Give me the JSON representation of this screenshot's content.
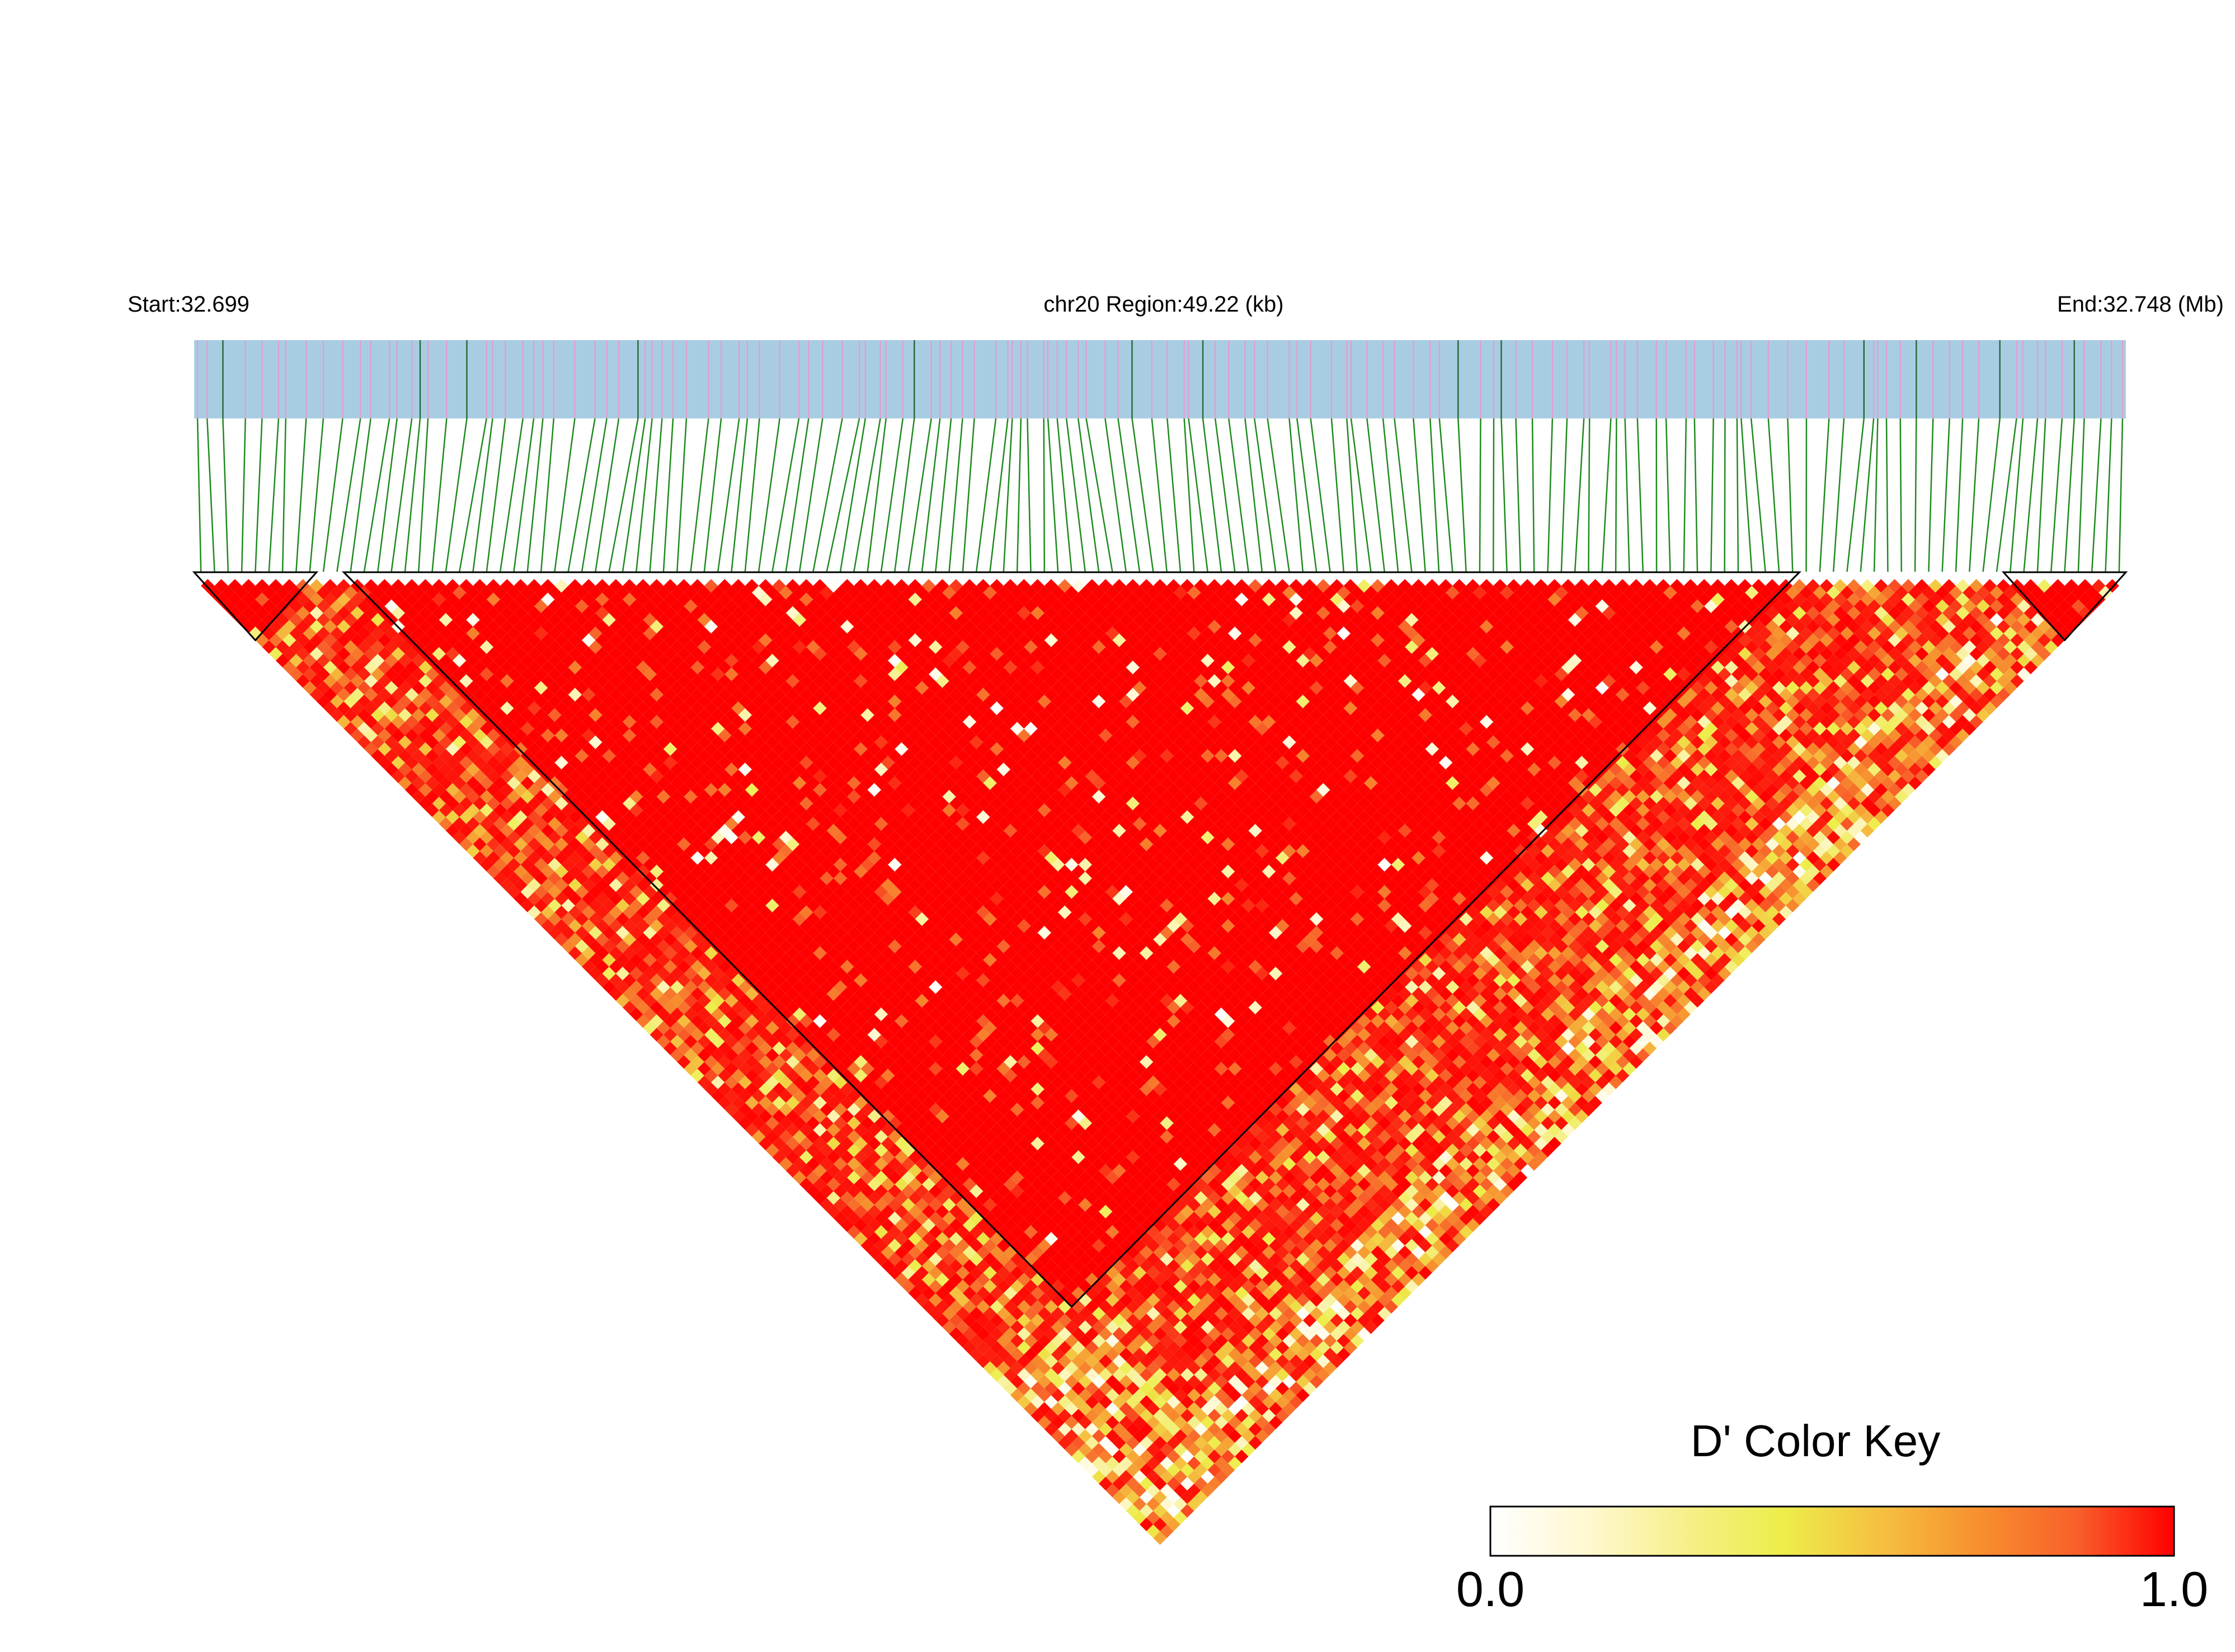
{
  "header": {
    "start_label": "Start:32.699",
    "region_label": "chr20 Region:49.22 (kb)",
    "end_label": "End:32.748 (Mb)"
  },
  "color_key": {
    "title": "D' Color Key",
    "min_label": "0.0",
    "max_label": "1.0",
    "stops": [
      "#ffffff",
      "#fff8d0",
      "#f6ef8a",
      "#eded4a",
      "#f5c040",
      "#f7902e",
      "#f8602a",
      "#ff0000"
    ]
  },
  "colors": {
    "gene_track": "#a8cde3",
    "snp_tick_pink": "#e0a0d0",
    "snp_tick_dark": "#2a6a3a",
    "connector": "#1f8a1f",
    "high_ld": "#ff0000"
  },
  "chart_data": {
    "type": "heatmap",
    "title": "",
    "region": "chr20",
    "start_mb": 32.699,
    "end_mb": 32.748,
    "region_kb": 49.22,
    "snp_count": 142,
    "value_name": "D'",
    "value_range": [
      0.0,
      1.0
    ],
    "ld_blocks": [
      {
        "first_snp": 1,
        "last_snp": 9
      },
      {
        "first_snp": 12,
        "last_snp": 118
      },
      {
        "first_snp": 134,
        "last_snp": 142
      }
    ],
    "notes": "Lower-triangle LD heatmap; most pairwise D' near 1.0 (red) inside the large central block, lower D' (yellow/orange/white) in pairs spanning block boundaries."
  }
}
